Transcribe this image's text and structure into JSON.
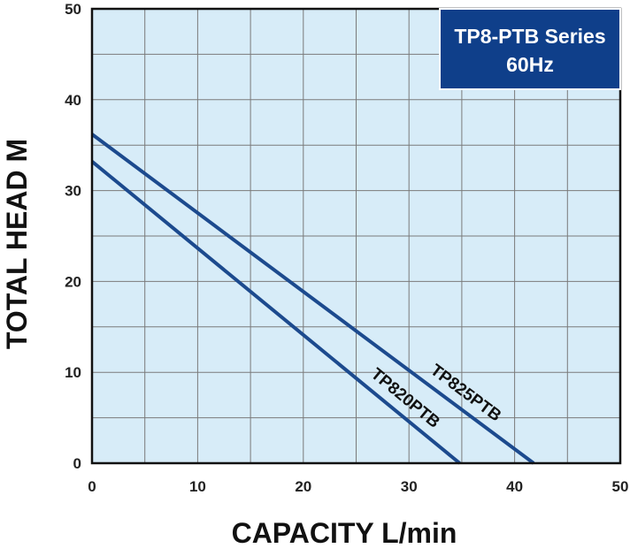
{
  "chart_data": {
    "type": "line",
    "title_box": {
      "line1": "TP8-PTB Series",
      "line2": "60Hz"
    },
    "xlabel": "CAPACITY  L/min",
    "ylabel": "TOTAL HEAD M",
    "xlim": [
      0,
      50
    ],
    "ylim": [
      0,
      50
    ],
    "x_ticks": [
      0,
      10,
      20,
      30,
      40,
      50
    ],
    "y_ticks": [
      0,
      10,
      20,
      30,
      40,
      50
    ],
    "grid": true,
    "x_grid_step": 5,
    "y_grid_step": 5,
    "colors": {
      "plot_background": "#d7ecf8",
      "line": "#1c4a8e",
      "grid": "#7a7a7a",
      "box_background": "#0f3f8a",
      "box_text": "#ffffff"
    },
    "series": [
      {
        "name": "TP825PTB",
        "points": [
          [
            0,
            36.2
          ],
          [
            41.8,
            0
          ]
        ]
      },
      {
        "name": "TP820PTB",
        "points": [
          [
            0,
            33.2
          ],
          [
            34.8,
            0
          ]
        ]
      }
    ]
  }
}
